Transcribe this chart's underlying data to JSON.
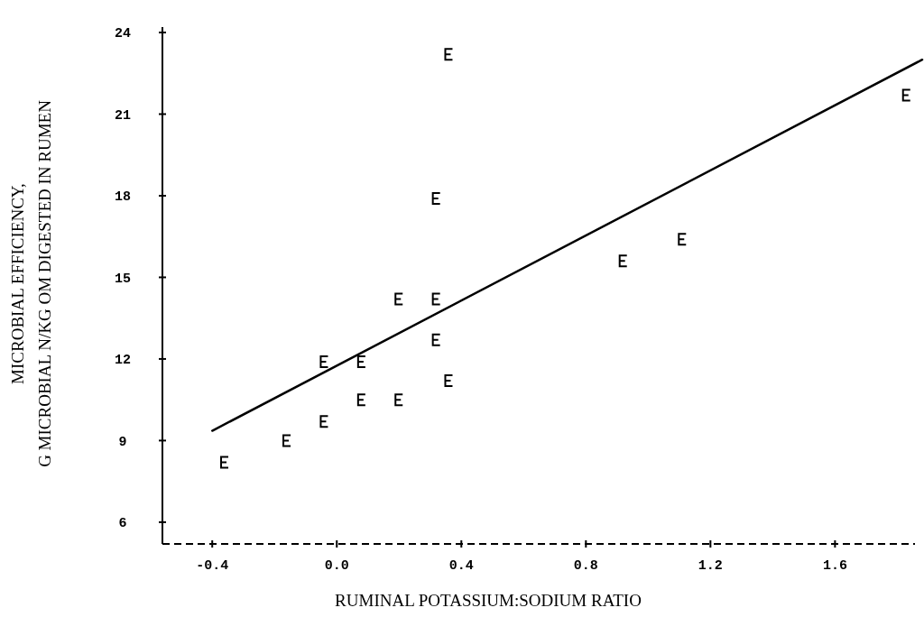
{
  "chart_data": {
    "type": "scatter",
    "xlabel": "RUMINAL POTASSIUM:SODIUM RATIO",
    "ylabel": "MICROBIAL EFFICIENCY,\nG MICROBIAL N/KG OM DIGESTED IN RUMEN",
    "xlim": [
      -0.56,
      1.88
    ],
    "ylim": [
      5.2,
      24.2
    ],
    "xticks": [
      {
        "value": -0.4,
        "label": "-0.4"
      },
      {
        "value": 0,
        "label": "0.0"
      },
      {
        "value": 0.4,
        "label": "0.4"
      },
      {
        "value": 0.8,
        "label": "0.8"
      },
      {
        "value": 1.2,
        "label": "1.2"
      },
      {
        "value": 1.6,
        "label": "1.6"
      }
    ],
    "yticks": [
      6,
      9,
      12,
      15,
      18,
      21,
      24
    ],
    "series": [
      {
        "color": "#000000",
        "x": [
          -0.36,
          -0.16,
          -0.04,
          -0.04,
          0.08,
          0.08,
          0.2,
          0.2,
          0.32,
          0.32,
          0.32,
          0.36,
          0.36,
          0.92,
          1.11,
          1.83
        ],
        "values": [
          8.2,
          9.0,
          9.7,
          11.9,
          11.9,
          10.5,
          10.5,
          14.2,
          14.2,
          12.7,
          17.9,
          11.2,
          23.2,
          15.6,
          16.4,
          21.7
        ]
      },
      {
        "type": "line",
        "color": "#000000",
        "x": [
          -0.4,
          1.88
        ],
        "values": [
          9.36,
          23.0
        ]
      }
    ]
  }
}
